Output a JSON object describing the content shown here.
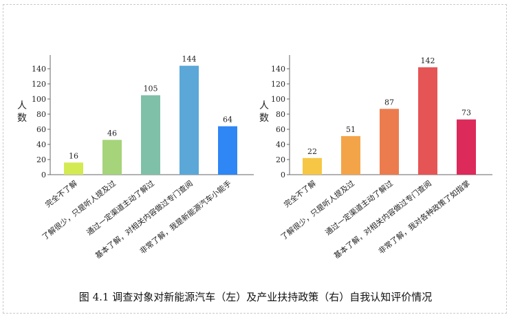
{
  "caption": "图 4.1   调查对象对新能源汽车（左）及产业扶持政策（右）自我认知评价情况",
  "chart_data": [
    {
      "type": "bar",
      "ylabel": "人数",
      "ylim": [
        0,
        150
      ],
      "yticks": [
        0,
        20,
        40,
        60,
        80,
        100,
        120,
        140
      ],
      "categories": [
        "完全不了解",
        "了解很少，只是听人提及过",
        "通过一定渠道主动了解过",
        "基本了解，对相关内容做过专门查阅",
        "非常了解，我是新能源汽车小能手"
      ],
      "values": [
        16,
        46,
        105,
        144,
        64
      ],
      "colors": [
        "#d4ea52",
        "#a5d47a",
        "#7ec0a8",
        "#5aa7d8",
        "#2f86f5"
      ]
    },
    {
      "type": "bar",
      "ylabel": "人数",
      "ylim": [
        0,
        150
      ],
      "yticks": [
        0,
        20,
        40,
        60,
        80,
        100,
        120,
        140
      ],
      "categories": [
        "完全不了解",
        "了解很少，只是听人提及过",
        "通过一定渠道主动了解过",
        "基本了解，对相关内容做过专门查阅",
        "非常了解，我对各种政策了如指掌"
      ],
      "values": [
        22,
        51,
        87,
        142,
        73
      ],
      "colors": [
        "#f6c744",
        "#f4a448",
        "#ec7c4e",
        "#e65555",
        "#dc2a5a"
      ]
    }
  ]
}
